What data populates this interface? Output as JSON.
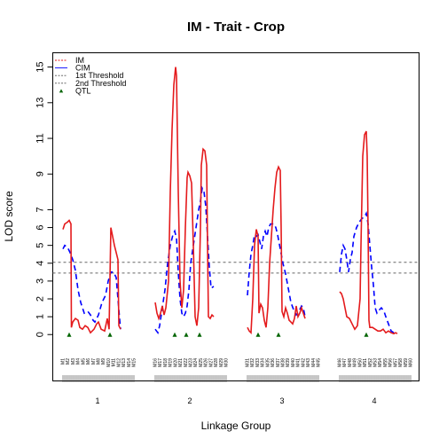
{
  "chart_data": {
    "type": "line",
    "title": "IM - Trait - Crop",
    "xlabel": "Linkage Group",
    "ylabel": "LOD score",
    "ylim": [
      -2.6,
      15.8
    ],
    "yticks": [
      0,
      1,
      2,
      3,
      4,
      5,
      6,
      7,
      9,
      11,
      13,
      15
    ],
    "legend_position": "top-left",
    "legend": [
      {
        "label": "IM",
        "style": "dashed",
        "color": "#e41a1c"
      },
      {
        "label": "CIM",
        "style": "solid",
        "color": "#0000ff"
      },
      {
        "label": "1st Threshold",
        "style": "dashed",
        "color": "#555555"
      },
      {
        "label": "2nd Threshold",
        "style": "dashed",
        "color": "#555555"
      },
      {
        "label": "QTL",
        "style": "triangle",
        "color": "#006400"
      }
    ],
    "thresholds": [
      4.05,
      3.45
    ],
    "threshold_color": "#666666",
    "im_color": "#e41a1c",
    "cim_color": "#0000ff",
    "qtl_color": "#006400",
    "marker_color": "#444444",
    "groups": [
      {
        "name": "1",
        "range": [
          0,
          80
        ],
        "markers": [
          "M1",
          "M2",
          "M3",
          "M4",
          "M5",
          "M6",
          "M7",
          "M8",
          "M9",
          "M10",
          "M11",
          "M12",
          "M13",
          "M14",
          "M15"
        ],
        "im": [
          [
            0,
            5.9
          ],
          [
            2,
            6.2
          ],
          [
            5,
            6.3
          ],
          [
            7,
            6.4
          ],
          [
            9,
            6.2
          ],
          [
            9.5,
            0.4
          ],
          [
            11,
            0.7
          ],
          [
            14,
            0.9
          ],
          [
            17,
            0.8
          ],
          [
            19,
            0.4
          ],
          [
            22,
            0.3
          ],
          [
            25,
            0.5
          ],
          [
            28,
            0.4
          ],
          [
            31,
            0.1
          ],
          [
            35,
            0.3
          ],
          [
            38,
            0.6
          ],
          [
            40,
            0.7
          ],
          [
            43,
            0.3
          ],
          [
            47,
            0.2
          ],
          [
            50,
            0.9
          ],
          [
            52,
            0.3
          ],
          [
            54,
            6.0
          ],
          [
            56,
            5.5
          ],
          [
            58,
            5.0
          ],
          [
            60,
            4.6
          ],
          [
            62,
            4.2
          ],
          [
            63,
            0.5
          ],
          [
            65,
            0.3
          ]
        ],
        "cim": [
          [
            0,
            4.8
          ],
          [
            2,
            5.0
          ],
          [
            5,
            4.9
          ],
          [
            8,
            4.6
          ],
          [
            11,
            4.2
          ],
          [
            14,
            3.6
          ],
          [
            17,
            2.5
          ],
          [
            20,
            1.8
          ],
          [
            24,
            1.2
          ],
          [
            28,
            1.3
          ],
          [
            31,
            1.1
          ],
          [
            34,
            0.8
          ],
          [
            36,
            0.7
          ],
          [
            40,
            1.1
          ],
          [
            44,
            1.8
          ],
          [
            48,
            2.2
          ],
          [
            51,
            3.0
          ],
          [
            54,
            3.5
          ],
          [
            57,
            3.5
          ],
          [
            60,
            3.2
          ],
          [
            62,
            2.0
          ],
          [
            64,
            0.8
          ],
          [
            65,
            0.3
          ]
        ],
        "qtl": [
          7,
          53
        ]
      },
      {
        "name": "2",
        "range": [
          0,
          80
        ],
        "markers": [
          "M16",
          "M17",
          "M18",
          "M19",
          "M20",
          "M21",
          "M22",
          "M23",
          "M24",
          "M25",
          "M26",
          "M27",
          "M28",
          "M29",
          "M30"
        ],
        "im": [
          [
            0,
            1.8
          ],
          [
            2,
            1.2
          ],
          [
            4,
            0.9
          ],
          [
            6,
            1.2
          ],
          [
            8,
            1.6
          ],
          [
            10,
            1.1
          ],
          [
            12,
            1.5
          ],
          [
            15,
            3.0
          ],
          [
            17,
            8.0
          ],
          [
            19,
            11.5
          ],
          [
            21,
            14.0
          ],
          [
            23,
            15.0
          ],
          [
            24,
            14.5
          ],
          [
            26,
            8.0
          ],
          [
            28,
            3.0
          ],
          [
            30,
            1.5
          ],
          [
            32,
            2.5
          ],
          [
            34,
            6.0
          ],
          [
            36,
            8.8
          ],
          [
            37,
            9.1
          ],
          [
            39,
            8.9
          ],
          [
            41,
            8.5
          ],
          [
            43,
            5.0
          ],
          [
            45,
            1.0
          ],
          [
            47,
            0.5
          ],
          [
            49,
            1.5
          ],
          [
            51,
            6.0
          ],
          [
            52,
            9.5
          ],
          [
            54,
            10.4
          ],
          [
            56,
            10.3
          ],
          [
            58,
            9.5
          ],
          [
            59,
            5.0
          ],
          [
            60,
            1.0
          ],
          [
            62,
            0.9
          ],
          [
            64,
            1.1
          ],
          [
            66,
            1.0
          ]
        ],
        "cim": [
          [
            0,
            0.3
          ],
          [
            3,
            0.1
          ],
          [
            5,
            0.5
          ],
          [
            8,
            1.5
          ],
          [
            11,
            2.5
          ],
          [
            14,
            4.0
          ],
          [
            17,
            5.0
          ],
          [
            20,
            5.6
          ],
          [
            22,
            5.8
          ],
          [
            24,
            5.4
          ],
          [
            26,
            3.5
          ],
          [
            28,
            2.0
          ],
          [
            30,
            1.2
          ],
          [
            32,
            1.0
          ],
          [
            34,
            1.2
          ],
          [
            36,
            1.6
          ],
          [
            38,
            2.5
          ],
          [
            40,
            4.0
          ],
          [
            43,
            5.0
          ],
          [
            46,
            6.0
          ],
          [
            49,
            7.0
          ],
          [
            51,
            7.5
          ],
          [
            53,
            8.2
          ],
          [
            55,
            8.0
          ],
          [
            57,
            7.2
          ],
          [
            59,
            5.5
          ],
          [
            61,
            3.8
          ],
          [
            63,
            2.6
          ],
          [
            66,
            2.7
          ]
        ],
        "qtl": [
          22,
          35,
          50
        ]
      },
      {
        "name": "3",
        "range": [
          0,
          80
        ],
        "markers": [
          "M31",
          "M32",
          "M33",
          "M34",
          "M35",
          "M36",
          "M37",
          "M38",
          "M39",
          "M40",
          "M41",
          "M42",
          "M43",
          "M44",
          "M45"
        ],
        "im": [
          [
            0,
            0.4
          ],
          [
            2,
            0.2
          ],
          [
            4,
            0.1
          ],
          [
            6,
            2.0
          ],
          [
            8,
            5.0
          ],
          [
            10,
            5.9
          ],
          [
            12,
            5.5
          ],
          [
            13,
            1.2
          ],
          [
            15,
            1.7
          ],
          [
            17,
            1.5
          ],
          [
            19,
            0.8
          ],
          [
            21,
            0.4
          ],
          [
            23,
            1.5
          ],
          [
            25,
            4.0
          ],
          [
            27,
            5.5
          ],
          [
            29,
            7.0
          ],
          [
            31,
            8.2
          ],
          [
            33,
            9.1
          ],
          [
            35,
            9.4
          ],
          [
            37,
            9.2
          ],
          [
            38,
            6.0
          ],
          [
            39,
            1.3
          ],
          [
            41,
            1.0
          ],
          [
            43,
            1.5
          ],
          [
            45,
            1.2
          ],
          [
            47,
            0.8
          ],
          [
            49,
            0.7
          ],
          [
            51,
            0.6
          ],
          [
            53,
            0.9
          ],
          [
            55,
            1.6
          ],
          [
            57,
            1.0
          ],
          [
            59,
            1.2
          ],
          [
            61,
            1.5
          ],
          [
            63,
            1.2
          ],
          [
            65,
            0.9
          ]
        ],
        "cim": [
          [
            0,
            2.2
          ],
          [
            2,
            3.5
          ],
          [
            4,
            4.5
          ],
          [
            6,
            5.0
          ],
          [
            8,
            5.6
          ],
          [
            10,
            5.5
          ],
          [
            12,
            5.6
          ],
          [
            14,
            5.2
          ],
          [
            16,
            4.8
          ],
          [
            18,
            5.5
          ],
          [
            20,
            5.8
          ],
          [
            22,
            5.5
          ],
          [
            24,
            6.0
          ],
          [
            26,
            6.2
          ],
          [
            28,
            6.2
          ],
          [
            30,
            6.2
          ],
          [
            32,
            6.0
          ],
          [
            34,
            5.6
          ],
          [
            37,
            4.8
          ],
          [
            40,
            4.0
          ],
          [
            43,
            3.4
          ],
          [
            46,
            2.6
          ],
          [
            49,
            1.8
          ],
          [
            52,
            1.4
          ],
          [
            55,
            1.1
          ],
          [
            58,
            1.3
          ],
          [
            61,
            1.6
          ],
          [
            63,
            1.5
          ],
          [
            65,
            1.0
          ]
        ],
        "qtl": [
          12,
          35
        ]
      },
      {
        "name": "4",
        "range": [
          0,
          80
        ],
        "markers": [
          "M46",
          "M47",
          "M48",
          "M49",
          "M50",
          "M51",
          "M52",
          "M53",
          "M54",
          "M55",
          "M56",
          "M57",
          "M58",
          "M59",
          "M60"
        ],
        "im": [
          [
            0,
            2.4
          ],
          [
            2,
            2.3
          ],
          [
            4,
            2.0
          ],
          [
            6,
            1.5
          ],
          [
            8,
            1.0
          ],
          [
            11,
            0.9
          ],
          [
            14,
            0.6
          ],
          [
            17,
            0.3
          ],
          [
            20,
            0.5
          ],
          [
            23,
            2.0
          ],
          [
            24,
            5.0
          ],
          [
            26,
            10.0
          ],
          [
            28,
            11.2
          ],
          [
            30,
            11.4
          ],
          [
            31,
            10.0
          ],
          [
            32,
            6.0
          ],
          [
            33,
            0.8
          ],
          [
            34,
            0.4
          ],
          [
            37,
            0.4
          ],
          [
            40,
            0.3
          ],
          [
            43,
            0.2
          ],
          [
            46,
            0.2
          ],
          [
            49,
            0.3
          ],
          [
            52,
            0.1
          ],
          [
            55,
            0.2
          ],
          [
            58,
            0.1
          ],
          [
            61,
            0.05
          ],
          [
            63,
            0.1
          ],
          [
            65,
            0.05
          ]
        ],
        "cim": [
          [
            0,
            3.5
          ],
          [
            2,
            4.5
          ],
          [
            4,
            5.0
          ],
          [
            6,
            4.8
          ],
          [
            8,
            4.2
          ],
          [
            10,
            3.5
          ],
          [
            12,
            4.2
          ],
          [
            14,
            4.6
          ],
          [
            16,
            5.5
          ],
          [
            19,
            6.0
          ],
          [
            22,
            6.3
          ],
          [
            25,
            6.5
          ],
          [
            28,
            6.6
          ],
          [
            30,
            6.8
          ],
          [
            32,
            6.2
          ],
          [
            34,
            5.0
          ],
          [
            36,
            3.8
          ],
          [
            38,
            2.8
          ],
          [
            40,
            1.5
          ],
          [
            42,
            1.2
          ],
          [
            45,
            1.4
          ],
          [
            47,
            1.5
          ],
          [
            50,
            1.3
          ],
          [
            52,
            1.0
          ],
          [
            55,
            0.6
          ],
          [
            58,
            0.2
          ],
          [
            61,
            0.1
          ],
          [
            64,
            0.2
          ]
        ],
        "qtl": [
          30
        ]
      }
    ]
  }
}
